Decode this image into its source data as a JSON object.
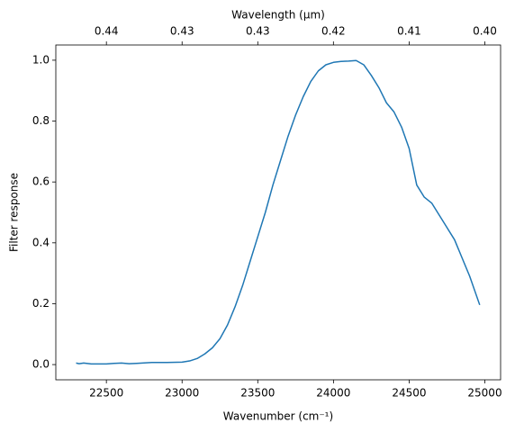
{
  "chart_data": {
    "type": "line",
    "xlabel": "Wavenumber (cm⁻¹)",
    "ylabel": "Filter response",
    "x2label": "Wavelength (μm)",
    "color": "#1f77b4",
    "x": [
      22300,
      22320,
      22350,
      22400,
      22500,
      22550,
      22600,
      22650,
      22700,
      22800,
      22900,
      23000,
      23050,
      23100,
      23150,
      23200,
      23250,
      23300,
      23350,
      23400,
      23450,
      23500,
      23550,
      23600,
      23650,
      23700,
      23750,
      23800,
      23850,
      23900,
      23950,
      24000,
      24050,
      24100,
      24150,
      24200,
      24250,
      24300,
      24350,
      24400,
      24450,
      24500,
      24550,
      24600,
      24650,
      24700,
      24750,
      24800,
      24850,
      24900,
      24966
    ],
    "values": [
      0.005,
      0.003,
      0.005,
      0.002,
      0.002,
      0.004,
      0.005,
      0.003,
      0.004,
      0.007,
      0.007,
      0.008,
      0.012,
      0.02,
      0.035,
      0.055,
      0.085,
      0.13,
      0.19,
      0.26,
      0.34,
      0.42,
      0.5,
      0.59,
      0.67,
      0.75,
      0.82,
      0.88,
      0.93,
      0.965,
      0.985,
      0.993,
      0.996,
      0.997,
      0.999,
      0.985,
      0.95,
      0.91,
      0.86,
      0.83,
      0.78,
      0.71,
      0.59,
      0.55,
      0.53,
      0.49,
      0.45,
      0.41,
      0.35,
      0.29,
      0.196
    ],
    "xlim": [
      22166,
      25104
    ],
    "xticks": [
      22500,
      23000,
      23500,
      24000,
      24500,
      25000
    ],
    "ylim": [
      -0.05,
      1.05
    ],
    "yticks": [
      {
        "value": 0,
        "label": "0.0"
      },
      0.2,
      0.4,
      0.6,
      0.8,
      {
        "value": 1,
        "label": "1.0"
      }
    ],
    "x2scale": "reciprocal",
    "x2lim": [
      0.45114,
      0.39834
    ],
    "x2ticks": [
      {
        "value": 0.44444,
        "label": "0.44"
      },
      {
        "value": 0.43478,
        "label": "0.43"
      },
      {
        "value": 0.42553,
        "label": "0.43"
      },
      {
        "value": 0.41667,
        "label": "0.42"
      },
      {
        "value": 0.40816,
        "label": "0.41"
      },
      {
        "value": 0.4,
        "label": "0.40"
      }
    ],
    "grid": false
  }
}
